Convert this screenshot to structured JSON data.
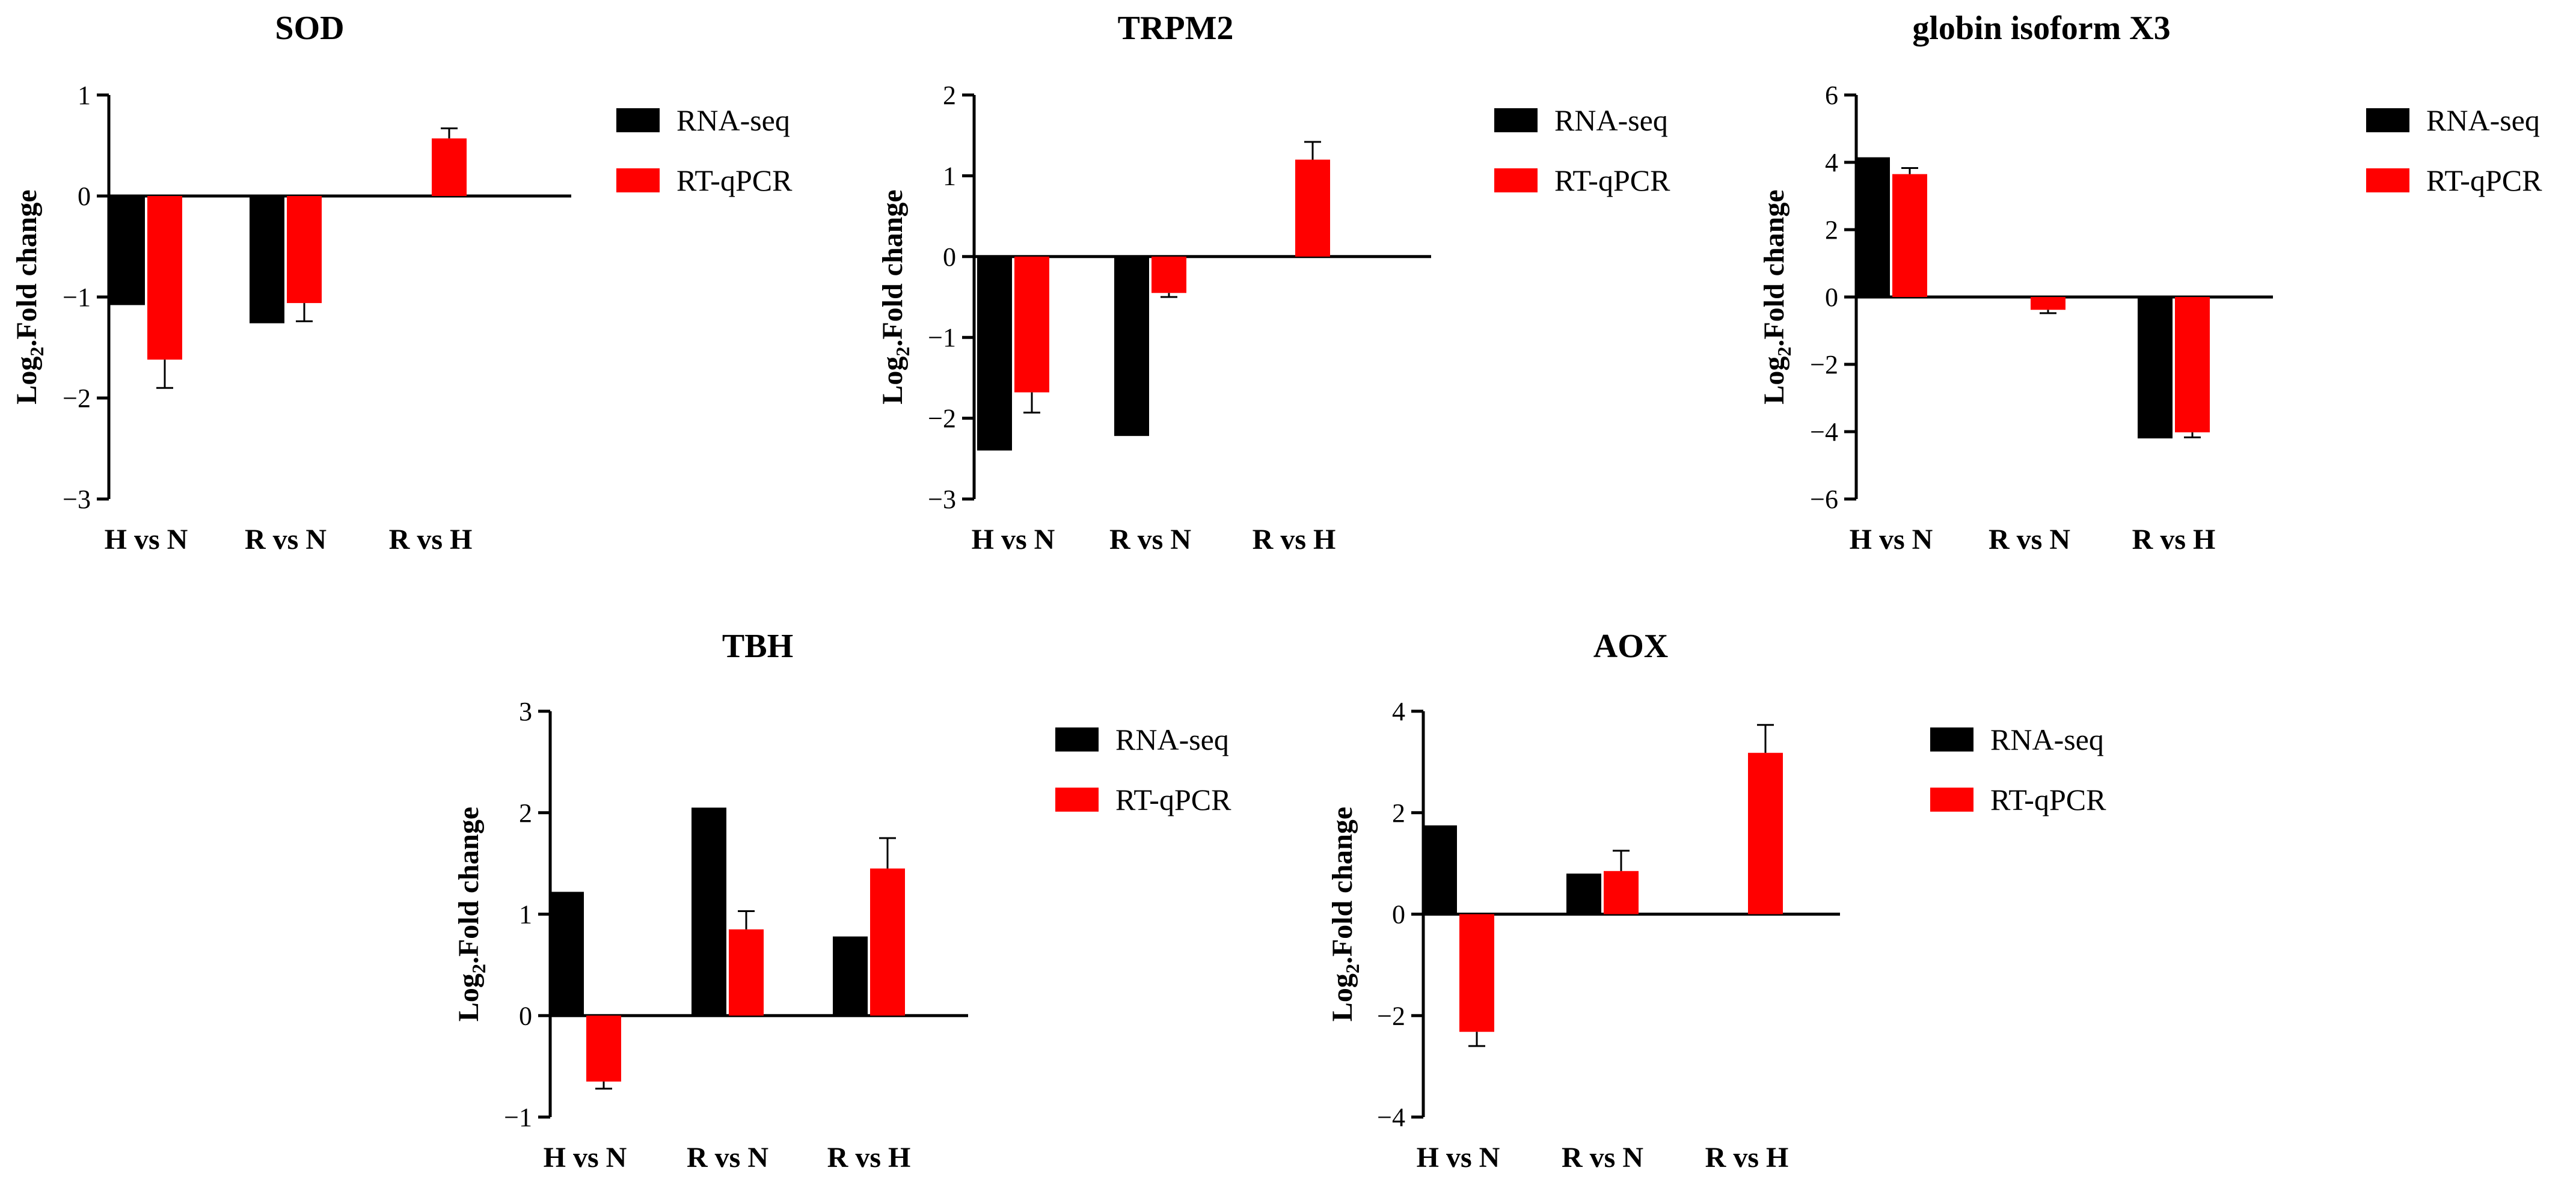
{
  "colors": {
    "rnaseq": "#000000",
    "rtqpcr": "#ff0000",
    "axis": "#000000"
  },
  "chart_data": [
    {
      "type": "bar",
      "title": "SOD",
      "ylabel": "Log2.Fold change",
      "ylabel_main": "Log",
      "ylabel_sub": "2",
      "ylabel_rest": ".Fold change",
      "categories": [
        "H vs N",
        "R vs N",
        "R vs H"
      ],
      "ylim": [
        -3,
        1
      ],
      "yticks": [
        -3,
        -2,
        -1,
        0,
        1
      ],
      "ytick_labels": [
        "−3",
        "−2",
        "−1",
        "0",
        "1"
      ],
      "series": [
        {
          "name": "RNA-seq",
          "values": [
            -1.08,
            -1.26,
            null
          ],
          "errors": [
            null,
            null,
            null
          ]
        },
        {
          "name": "RT-qPCR",
          "values": [
            -1.62,
            -1.06,
            0.57
          ],
          "errors": [
            0.28,
            0.18,
            0.1
          ]
        }
      ],
      "legend": [
        "RNA-seq",
        "RT-qPCR"
      ]
    },
    {
      "type": "bar",
      "title": "TRPM2",
      "ylabel": "Log2.Fold change",
      "ylabel_main": "Log",
      "ylabel_sub": "2",
      "ylabel_rest": ".Fold change",
      "categories": [
        "H vs N",
        "R vs N",
        "R vs H"
      ],
      "ylim": [
        -3,
        2
      ],
      "yticks": [
        -3,
        -2,
        -1,
        0,
        1,
        2
      ],
      "ytick_labels": [
        "−3",
        "−2",
        "−1",
        "0",
        "1",
        "2"
      ],
      "series": [
        {
          "name": "RNA-seq",
          "values": [
            -2.4,
            -2.22,
            null
          ],
          "errors": [
            null,
            null,
            null
          ]
        },
        {
          "name": "RT-qPCR",
          "values": [
            -1.68,
            -0.45,
            1.2
          ],
          "errors": [
            0.25,
            0.05,
            0.22
          ]
        }
      ],
      "legend": [
        "RNA-seq",
        "RT-qPCR"
      ]
    },
    {
      "type": "bar",
      "title": "globin isoform X3",
      "ylabel": "Log2.Fold change",
      "ylabel_main": "Log",
      "ylabel_sub": "2",
      "ylabel_rest": ".Fold change",
      "categories": [
        "H vs N",
        "R vs N",
        "R vs H"
      ],
      "ylim": [
        -6,
        6
      ],
      "yticks": [
        -6,
        -4,
        -2,
        0,
        2,
        4,
        6
      ],
      "ytick_labels": [
        "−6",
        "−4",
        "−2",
        "0",
        "2",
        "4",
        "6"
      ],
      "series": [
        {
          "name": "RNA-seq",
          "values": [
            4.15,
            null,
            -4.2
          ],
          "errors": [
            null,
            null,
            null
          ]
        },
        {
          "name": "RT-qPCR",
          "values": [
            3.65,
            -0.38,
            -4.02
          ],
          "errors": [
            0.18,
            0.1,
            0.15
          ]
        }
      ],
      "legend": [
        "RNA-seq",
        "RT-qPCR"
      ]
    },
    {
      "type": "bar",
      "title": "TBH",
      "ylabel": "Log2.Fold change",
      "ylabel_main": "Log",
      "ylabel_sub": "2",
      "ylabel_rest": ".Fold change",
      "categories": [
        "H vs N",
        "R vs N",
        "R vs H"
      ],
      "ylim": [
        -1,
        3
      ],
      "yticks": [
        -1,
        0,
        1,
        2,
        3
      ],
      "ytick_labels": [
        "−1",
        "0",
        "1",
        "2",
        "3"
      ],
      "series": [
        {
          "name": "RNA-seq",
          "values": [
            1.22,
            2.05,
            0.78
          ],
          "errors": [
            null,
            null,
            null
          ]
        },
        {
          "name": "RT-qPCR",
          "values": [
            -0.65,
            0.85,
            1.45
          ],
          "errors": [
            0.07,
            0.18,
            0.3
          ]
        }
      ],
      "legend": [
        "RNA-seq",
        "RT-qPCR"
      ]
    },
    {
      "type": "bar",
      "title": "AOX",
      "ylabel": "Log2.Fold change",
      "ylabel_main": "Log",
      "ylabel_sub": "2",
      "ylabel_rest": ".Fold change",
      "categories": [
        "H vs N",
        "R vs N",
        "R vs H"
      ],
      "ylim": [
        -4,
        4
      ],
      "yticks": [
        -4,
        -2,
        0,
        2,
        4
      ],
      "ytick_labels": [
        "−4",
        "−2",
        "0",
        "2",
        "4"
      ],
      "series": [
        {
          "name": "RNA-seq",
          "values": [
            1.75,
            0.8,
            null
          ],
          "errors": [
            null,
            null,
            null
          ]
        },
        {
          "name": "RT-qPCR",
          "values": [
            -2.32,
            0.85,
            3.18
          ],
          "errors": [
            0.28,
            0.4,
            0.55
          ]
        }
      ],
      "legend": [
        "RNA-seq",
        "RT-qPCR"
      ]
    }
  ]
}
